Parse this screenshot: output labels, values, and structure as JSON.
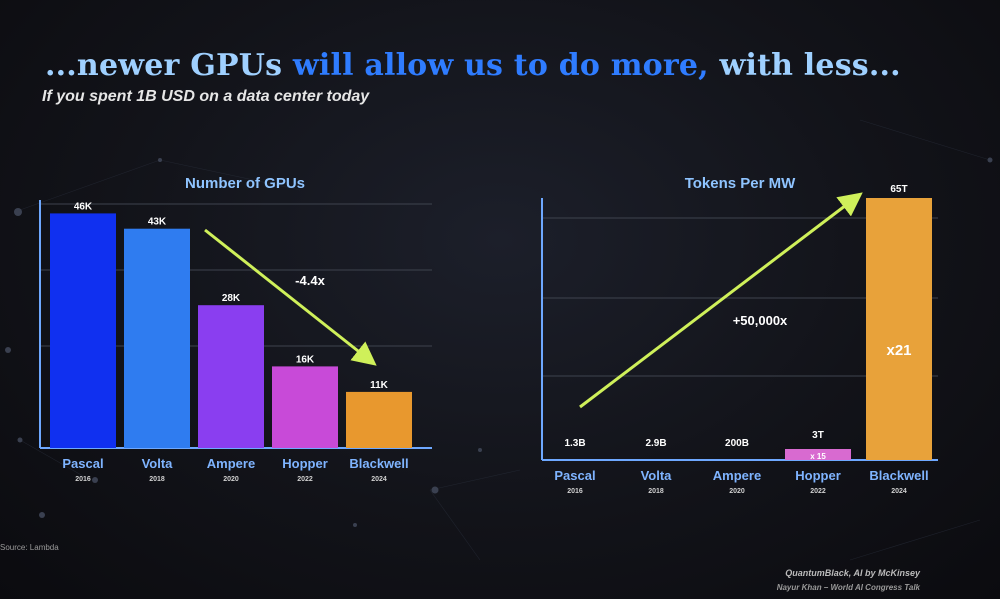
{
  "slide": {
    "title_parts": [
      "...newer GPUs ",
      "will allow us to do more,",
      " with less..."
    ],
    "subtitle": "If you spent 1B USD on a data center today",
    "source": "Source: Lambda",
    "credit_line1": "QuantumBlack, AI by McKinsey",
    "credit_line2": "Nayur Khan – World AI Congress Talk"
  },
  "colors": {
    "bar_colors": [
      "#1030f0",
      "#2f7cf0",
      "#8a3ef0",
      "#c84ad8",
      "#e8982e"
    ],
    "tokens_last_bar": "#e8a23a",
    "tokens_small_bar": "#d86ad0",
    "arrow": "#cff05a",
    "axis": "#6ea8ff"
  },
  "chart_data": [
    {
      "type": "bar",
      "title": "Number of GPUs",
      "categories": [
        "Pascal",
        "Volta",
        "Ampere",
        "Hopper",
        "Blackwell"
      ],
      "years": [
        "2016",
        "2018",
        "2020",
        "2022",
        "2024"
      ],
      "values": [
        46000,
        43000,
        28000,
        16000,
        11000
      ],
      "value_labels": [
        "46K",
        "43K",
        "28K",
        "16K",
        "11K"
      ],
      "ylim": [
        0,
        50000
      ],
      "annotation": "-4.4x"
    },
    {
      "type": "bar",
      "title": "Tokens Per MW",
      "categories": [
        "Pascal",
        "Volta",
        "Ampere",
        "Hopper",
        "Blackwell"
      ],
      "years": [
        "2016",
        "2018",
        "2020",
        "2022",
        "2024"
      ],
      "values": [
        1300000000,
        2900000000,
        200000000000,
        3000000000000,
        65000000000000
      ],
      "value_labels": [
        "1.3B",
        "2.9B",
        "200B",
        "3T",
        "65T"
      ],
      "ylim": [
        0,
        65000000000000
      ],
      "annotation": "+50,000x",
      "bar_notes": [
        "",
        "",
        "",
        "x 15",
        "x21"
      ]
    }
  ]
}
